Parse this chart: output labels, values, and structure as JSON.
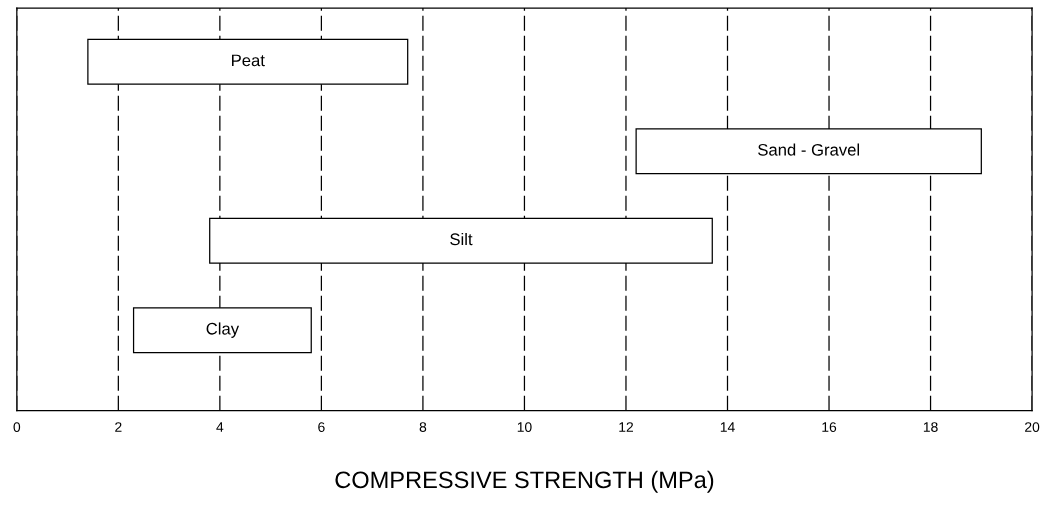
{
  "chart_data": {
    "type": "bar",
    "orientation": "horizontal",
    "xlabel": "COMPRESSIVE STRENGTH (MPa)",
    "categories": [
      "Peat",
      "Sand - Gravel",
      "Silt",
      "Clay"
    ],
    "base": [
      1.4,
      12.2,
      3.8,
      2.3
    ],
    "values": [
      6.3,
      6.8,
      9.9,
      3.5
    ],
    "color": "#ffffff",
    "xlim": [
      0,
      20
    ],
    "xticks": [
      0,
      2,
      4,
      6,
      8,
      10,
      12,
      14,
      16,
      18,
      20
    ],
    "grid": "x",
    "tick_labels": "x",
    "legend": false
  }
}
